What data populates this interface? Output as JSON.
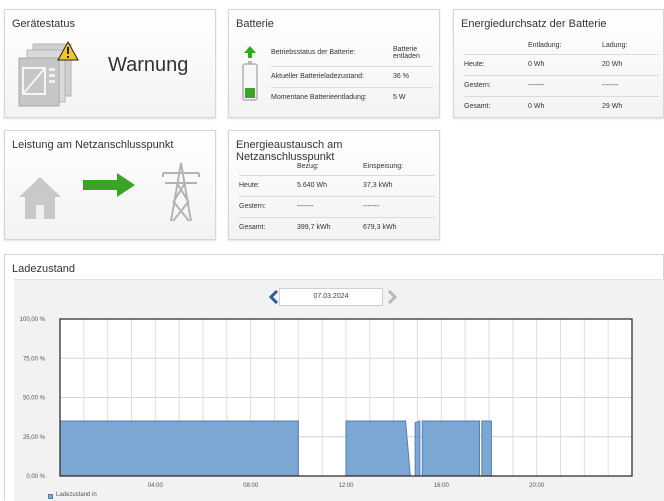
{
  "geraetestatus": {
    "title": "Gerätestatus",
    "status": "Warnung",
    "icon": "device-warning-icon"
  },
  "batterie": {
    "title": "Batterie",
    "rows": [
      {
        "label": "Betriebsstatus der Batterie:",
        "value_line1": "Batterie",
        "value_line2": "entladen"
      },
      {
        "label": "Aktueller Batterieladezustand:",
        "value": "36 %"
      },
      {
        "label": "Momentane Batterieentladung:",
        "value": "5 W"
      }
    ]
  },
  "energiedurchsatz": {
    "title": "Energiedurchsatz der Batterie",
    "headers": [
      "Entladung:",
      "Ladung:"
    ],
    "rows": [
      {
        "label": "Heute:",
        "v1": "0 Wh",
        "v2": "20 Wh"
      },
      {
        "label": "Gestern:",
        "v1": "-------",
        "v2": "-------"
      },
      {
        "label": "Gesamt:",
        "v1": "0 Wh",
        "v2": "29 Wh"
      }
    ]
  },
  "leistung": {
    "title": "Leistung am Netzanschlusspunkt",
    "arrow_color": "#3aa524"
  },
  "energieaustausch": {
    "title": "Energieaustausch am Netzanschlusspunkt",
    "headers": [
      "Bezug:",
      "Einspeisung:"
    ],
    "rows": [
      {
        "label": "Heute:",
        "v1": "5.640 Wh",
        "v2": "37,3 kWh"
      },
      {
        "label": "Gestern:",
        "v1": "-------",
        "v2": "-------"
      },
      {
        "label": "Gesamt:",
        "v1": "399,7 kWh",
        "v2": "679,3 kWh"
      }
    ]
  },
  "ladezustand": {
    "title": "Ladezustand",
    "date": "07.03.2024",
    "legend": "Ladezustand in"
  },
  "chart_data": {
    "type": "area",
    "x_tick_labels": [
      "04:00",
      "08:00",
      "12:00",
      "16:00",
      "20:00"
    ],
    "y_tick_labels": [
      "0,00 %",
      "25,00 %",
      "50,00 %",
      "75,00 %",
      "100,00 %"
    ],
    "ylim": [
      0,
      100
    ],
    "xlim_hours": [
      0,
      24
    ],
    "grid": true,
    "fill_color": "#7da7d3",
    "line_color": "#4d7fb8",
    "series": [
      {
        "name": "Ladezustand in",
        "segments": [
          [
            [
              0,
              35
            ],
            [
              10,
              35
            ]
          ],
          [
            [
              12,
              35
            ],
            [
              14.5,
              35
            ],
            [
              14.7,
              0
            ]
          ],
          [
            [
              14.9,
              34
            ],
            [
              15.1,
              35
            ]
          ],
          [
            [
              15.2,
              35
            ],
            [
              17.6,
              35
            ]
          ],
          [
            [
              17.7,
              35
            ],
            [
              18.1,
              35
            ]
          ]
        ]
      }
    ]
  }
}
